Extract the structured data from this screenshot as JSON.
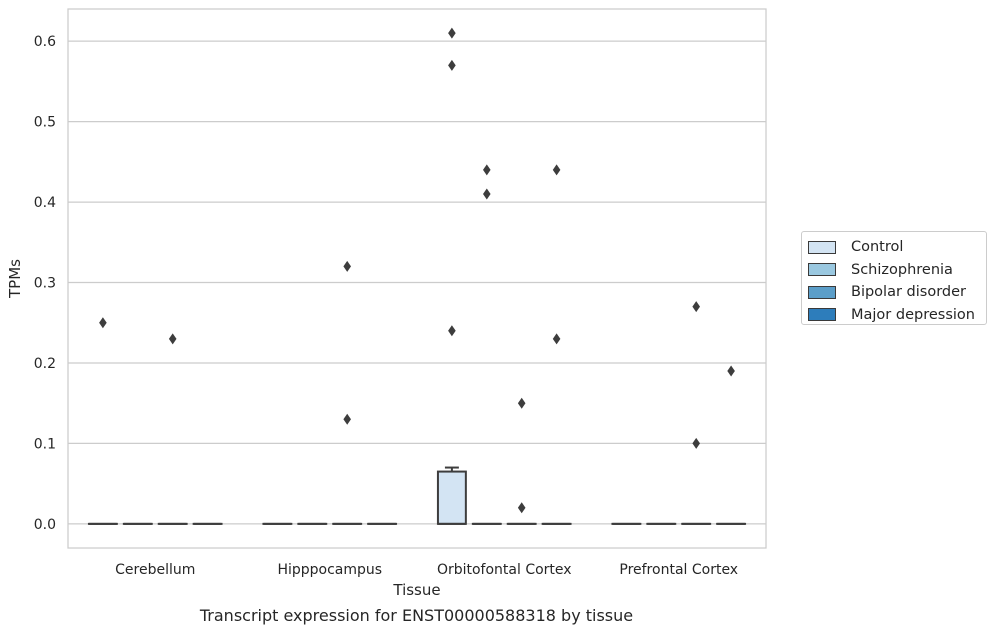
{
  "chart_data": {
    "type": "box",
    "xlabel": "Tissue",
    "ylabel": "TPMs",
    "caption": "Transcript expression for ENST00000588318 by tissue",
    "categories": [
      "Cerebellum",
      "Hipppocampus",
      "Orbitofontal Cortex",
      "Prefrontal Cortex"
    ],
    "ylim": [
      -0.03,
      0.64
    ],
    "yticks": [
      "0.0",
      "0.1",
      "0.2",
      "0.3",
      "0.4",
      "0.5",
      "0.6"
    ],
    "grid": "horizontal",
    "legend_position": "right",
    "series": [
      {
        "name": "Control",
        "color": "#d3e4f3",
        "boxes": [
          {
            "category": "Cerebellum",
            "q1": 0,
            "median": 0,
            "q3": 0,
            "whisker_low": 0,
            "whisker_high": 0,
            "outliers": [
              0.25
            ]
          },
          {
            "category": "Hipppocampus",
            "q1": 0,
            "median": 0,
            "q3": 0,
            "whisker_low": 0,
            "whisker_high": 0,
            "outliers": []
          },
          {
            "category": "Orbitofontal Cortex",
            "q1": 0,
            "median": 0,
            "q3": 0.065,
            "whisker_low": 0,
            "whisker_high": 0.07,
            "outliers": [
              0.24,
              0.57,
              0.61
            ]
          },
          {
            "category": "Prefrontal Cortex",
            "q1": 0,
            "median": 0,
            "q3": 0,
            "whisker_low": 0,
            "whisker_high": 0,
            "outliers": []
          }
        ]
      },
      {
        "name": "Schizophrenia",
        "color": "#9ac8e0",
        "boxes": [
          {
            "category": "Cerebellum",
            "q1": 0,
            "median": 0,
            "q3": 0,
            "whisker_low": 0,
            "whisker_high": 0,
            "outliers": []
          },
          {
            "category": "Hipppocampus",
            "q1": 0,
            "median": 0,
            "q3": 0,
            "whisker_low": 0,
            "whisker_high": 0,
            "outliers": []
          },
          {
            "category": "Orbitofontal Cortex",
            "q1": 0,
            "median": 0,
            "q3": 0,
            "whisker_low": 0,
            "whisker_high": 0,
            "outliers": [
              0.41,
              0.44
            ]
          },
          {
            "category": "Prefrontal Cortex",
            "q1": 0,
            "median": 0,
            "q3": 0,
            "whisker_low": 0,
            "whisker_high": 0,
            "outliers": []
          }
        ]
      },
      {
        "name": "Bipolar disorder",
        "color": "#5b9ec9",
        "boxes": [
          {
            "category": "Cerebellum",
            "q1": 0,
            "median": 0,
            "q3": 0,
            "whisker_low": 0,
            "whisker_high": 0,
            "outliers": [
              0.23
            ]
          },
          {
            "category": "Hipppocampus",
            "q1": 0,
            "median": 0,
            "q3": 0,
            "whisker_low": 0,
            "whisker_high": 0,
            "outliers": [
              0.13,
              0.32
            ]
          },
          {
            "category": "Orbitofontal Cortex",
            "q1": 0,
            "median": 0,
            "q3": 0,
            "whisker_low": 0,
            "whisker_high": 0,
            "outliers": [
              0.02,
              0.15
            ]
          },
          {
            "category": "Prefrontal Cortex",
            "q1": 0,
            "median": 0,
            "q3": 0,
            "whisker_low": 0,
            "whisker_high": 0,
            "outliers": [
              0.1,
              0.27
            ]
          }
        ]
      },
      {
        "name": "Major depression",
        "color": "#2d7dbb",
        "boxes": [
          {
            "category": "Cerebellum",
            "q1": 0,
            "median": 0,
            "q3": 0,
            "whisker_low": 0,
            "whisker_high": 0,
            "outliers": []
          },
          {
            "category": "Hipppocampus",
            "q1": 0,
            "median": 0,
            "q3": 0,
            "whisker_low": 0,
            "whisker_high": 0,
            "outliers": []
          },
          {
            "category": "Orbitofontal Cortex",
            "q1": 0,
            "median": 0,
            "q3": 0,
            "whisker_low": 0,
            "whisker_high": 0,
            "outliers": [
              0.23,
              0.44
            ]
          },
          {
            "category": "Prefrontal Cortex",
            "q1": 0,
            "median": 0,
            "q3": 0,
            "whisker_low": 0,
            "whisker_high": 0,
            "outliers": [
              0.19
            ]
          }
        ]
      }
    ]
  }
}
